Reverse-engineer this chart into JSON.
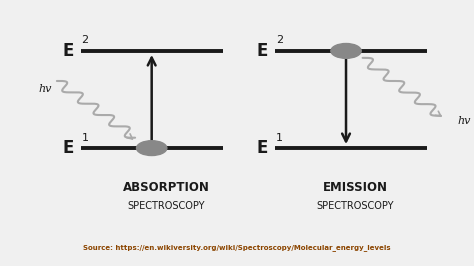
{
  "bg_color": "#f0f0f0",
  "footer_color": "#FFE000",
  "footer_text": "Source: https://en.wikiversity.org/wiki/Spectroscopy/Molecular_energy_levels",
  "footer_text_color": "#8B4500",
  "line_color": "#1a1a1a",
  "wavy_color": "#aaaaaa",
  "circle_color": "#888888",
  "label1": "ABSORPTION",
  "label2": "SPECTROSCOPY",
  "label3": "EMISSION",
  "label4": "SPECTROSCOPY",
  "E1_label": "E",
  "E2_label": "E",
  "hv_label": "hv",
  "figw": 4.74,
  "figh": 2.66,
  "dpi": 100
}
